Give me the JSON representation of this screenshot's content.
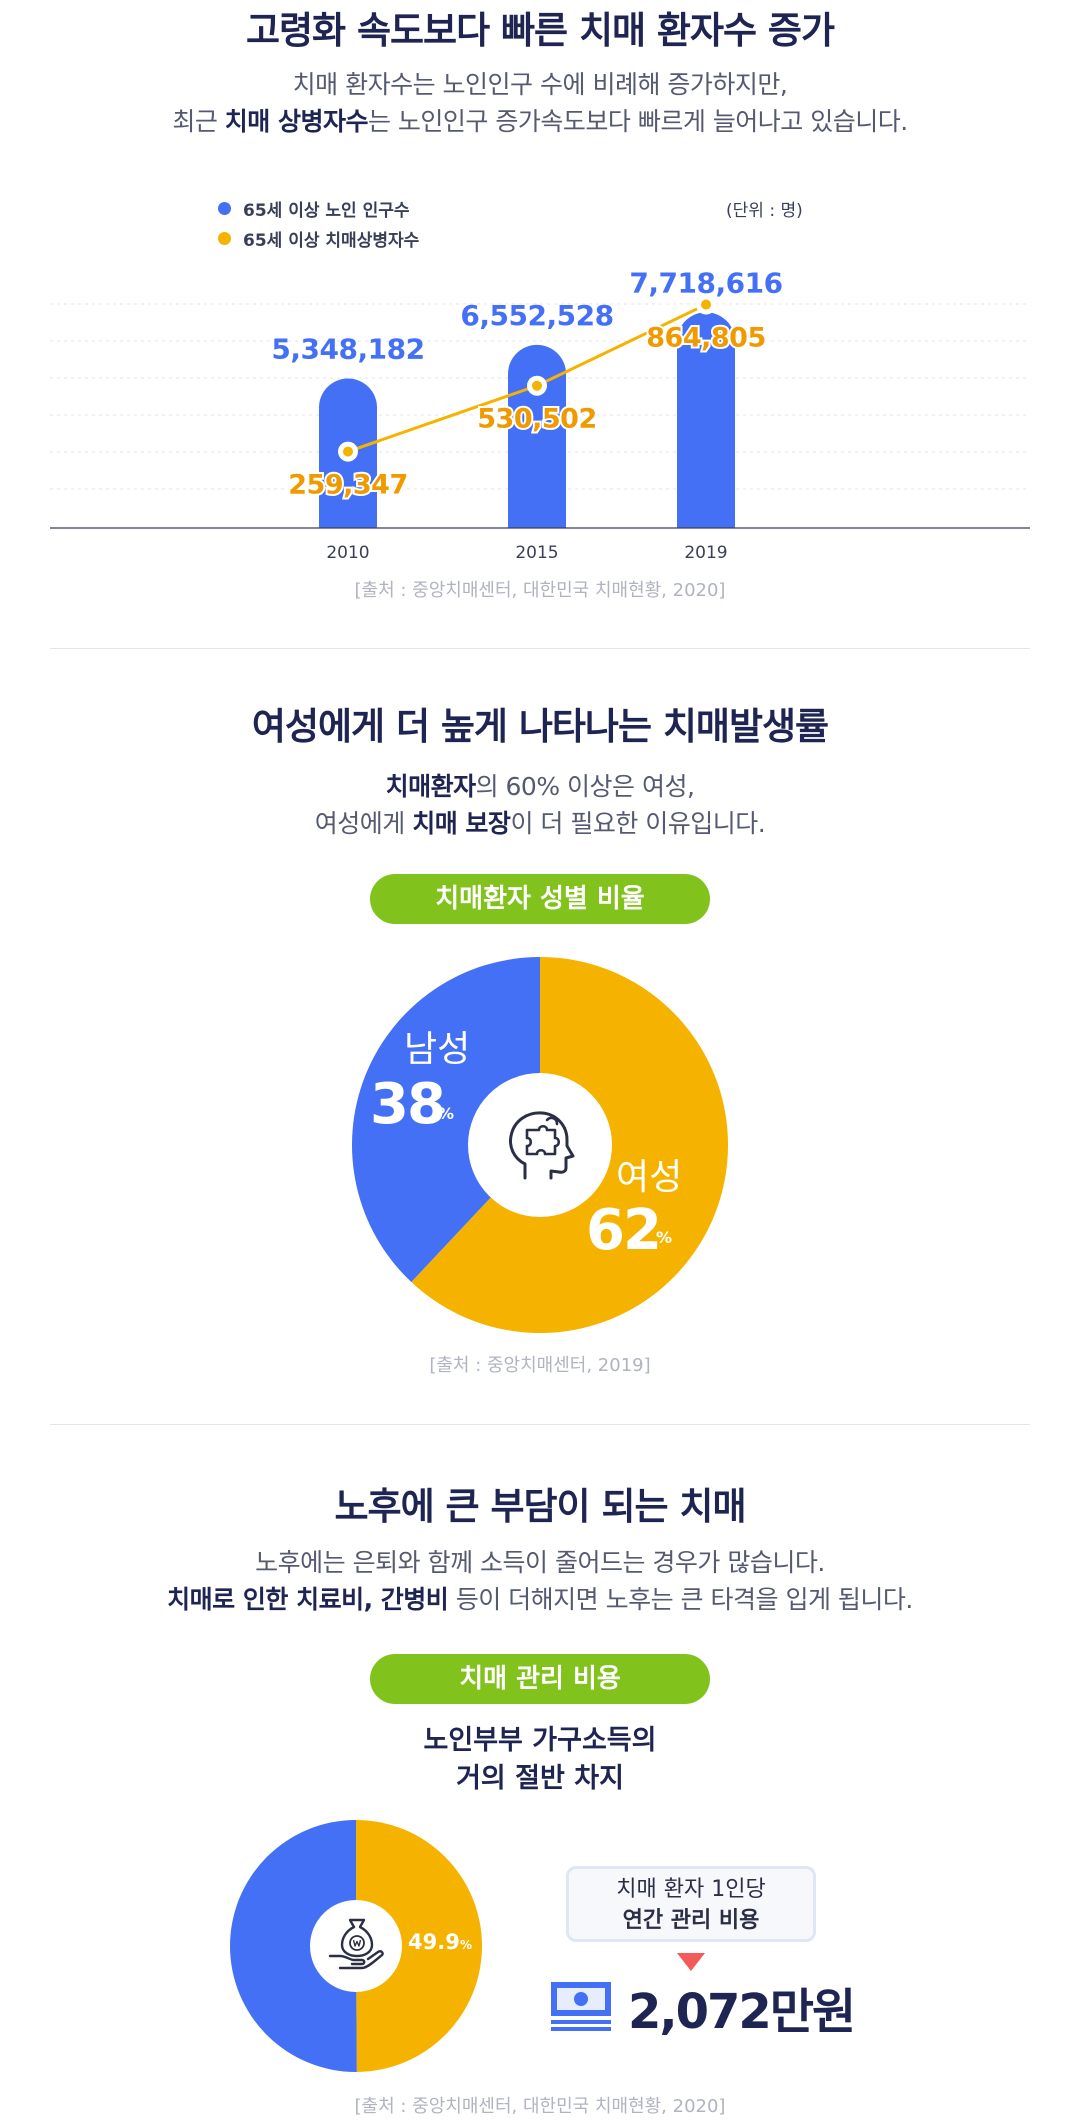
{
  "section1": {
    "title": "고령화 속도보다 빠른 치매 환자수 증가",
    "subtitle_line1": "치매 환자수는 노인인구 수에 비례해 증가하지만,",
    "subtitle_line2_pre": "최근 ",
    "subtitle_line2_bold": "치매 상병자수",
    "subtitle_line2_post": "는 노인인구 증가속도보다 빠르게 늘어나고 있습니다.",
    "source": "[출처 : 중앙치매센터, 대한민국 치매현황, 2020]"
  },
  "section2": {
    "title": "여성에게 더 높게 나타나는 치매발생률",
    "subtitle_line1_bold": "치매환자",
    "subtitle_line1_post": "의 60% 이상은 여성,",
    "subtitle_line2_pre": "여성에게 ",
    "subtitle_line2_bold": "치매 보장",
    "subtitle_line2_post": "이 더 필요한 이유입니다.",
    "pill": "치매환자 성별 비율",
    "source": "[출처 : 중앙치매센터, 2019]",
    "percent_sign": "%"
  },
  "section3": {
    "title": "노후에 큰 부담이 되는 치매",
    "subtitle_line1": "노후에는 은퇴와 함께 소득이 줄어드는 경우가 많습니다.",
    "subtitle_line2_bold": "치매로 인한 치료비, 간병비",
    "subtitle_line2_post": " 등이 더해지면 노후는 큰 타격을 입게 됩니다.",
    "pill": "치매 관리 비용",
    "caption_line1": "노인부부 가구소득의",
    "caption_line2": "거의 절반 차지",
    "box_line1": "치매 환자 1인당",
    "box_line2": "연간 관리 비용",
    "amount": "2,072만원",
    "percent_sign": "%",
    "source": "[출처 : 중앙치매센터, 대한민국 치매현황, 2020]"
  },
  "colors": {
    "blue": "#4470f6",
    "yellow": "#f5b300",
    "green": "#82c21c",
    "navy": "#1f2552"
  },
  "chart_data": [
    {
      "type": "bar",
      "unit": "(단위 : 명)",
      "categories": [
        "2010",
        "2015",
        "2019"
      ],
      "series": [
        {
          "name": "65세 이상 노인 인구수",
          "values": [
            5348182,
            6552528,
            7718616
          ],
          "labels": [
            "5,348,182",
            "6,552,528",
            "7,718,616"
          ],
          "color": "#4470f6"
        },
        {
          "name": "65세 이상 치매상병자수",
          "values": [
            259347,
            530502,
            864805
          ],
          "labels": [
            "259,347",
            "530,502",
            "864,805"
          ],
          "color": "#f5b300",
          "render": "line"
        }
      ],
      "legend": "top-left",
      "grid": true
    },
    {
      "type": "pie",
      "slices": [
        {
          "name": "남성",
          "value": 38,
          "label": "38",
          "color": "#4470f6"
        },
        {
          "name": "여성",
          "value": 62,
          "label": "62",
          "color": "#f5b300"
        }
      ]
    },
    {
      "type": "pie",
      "slices": [
        {
          "name": "",
          "value": 49.9,
          "label": "49.9",
          "color": "#f5b300"
        },
        {
          "name": "",
          "value": 50.1,
          "label": "",
          "color": "#4470f6"
        }
      ]
    }
  ]
}
